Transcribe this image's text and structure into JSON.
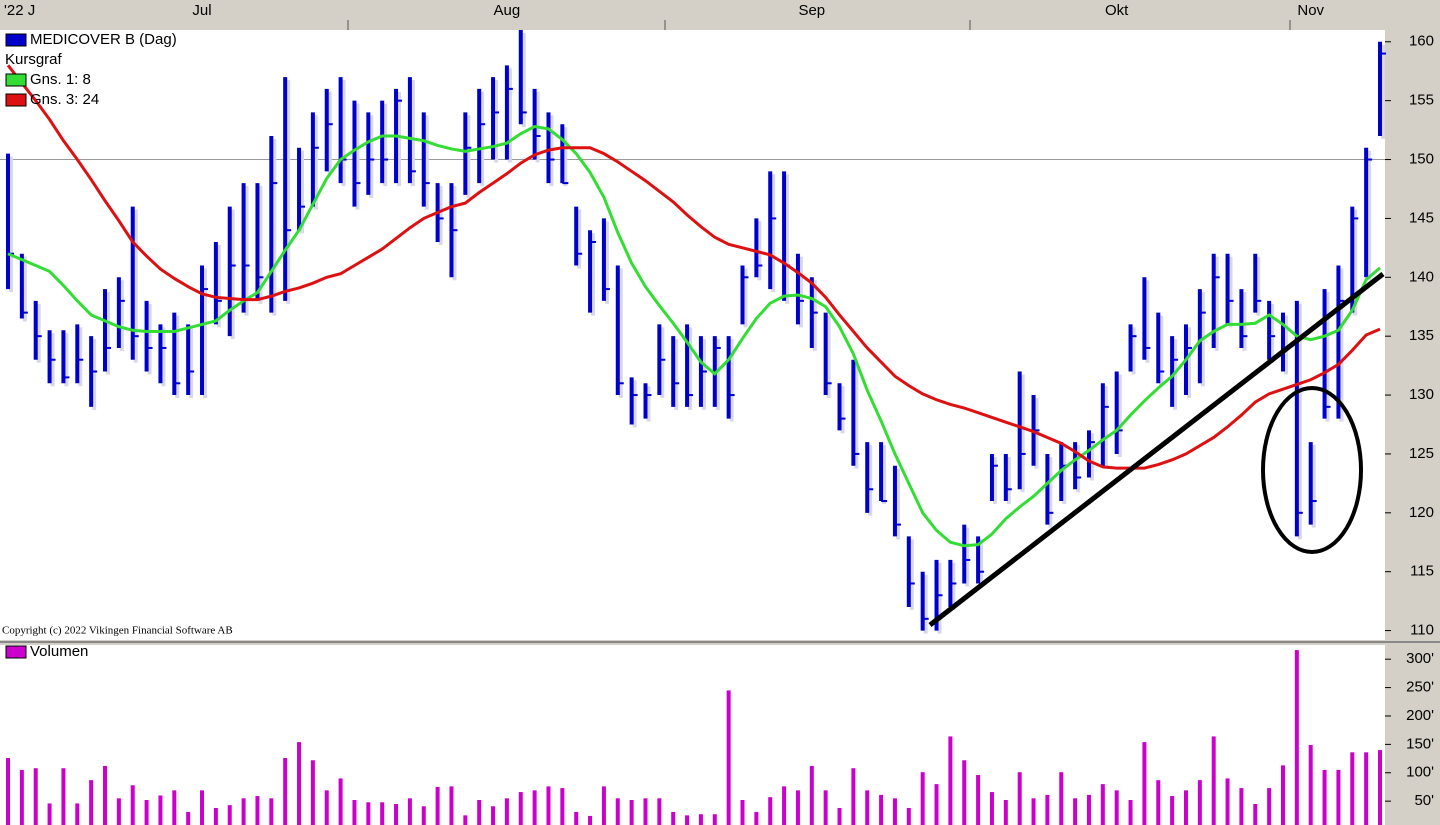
{
  "chart_data": [
    {
      "type": "ohlc",
      "subtitle": "Kursgraf",
      "annotation": "Copyright (c) 2022 Vikingen Financial Software AB",
      "categories": [
        null,
        "'22 J",
        null,
        null,
        null,
        null,
        null,
        null,
        null,
        null,
        null,
        null,
        null,
        null,
        "Jul",
        null,
        null,
        null,
        null,
        null,
        null,
        null,
        null,
        null,
        null,
        null,
        null,
        null,
        null,
        null,
        null,
        null,
        null,
        null,
        null,
        null,
        "Aug",
        null,
        null,
        null,
        null,
        null,
        null,
        null,
        null,
        null,
        null,
        null,
        null,
        null,
        null,
        null,
        null,
        null,
        null,
        null,
        null,
        null,
        "Sep",
        null,
        null,
        null,
        null,
        null,
        null,
        null,
        null,
        null,
        null,
        null,
        null,
        null,
        null,
        null,
        null,
        null,
        null,
        null,
        null,
        null,
        "Okt",
        null,
        null,
        null,
        null,
        null,
        null,
        null,
        null,
        null,
        null,
        null,
        null,
        null,
        "Nov",
        null,
        null,
        null,
        null,
        null
      ],
      "series": [
        {
          "name": "MEDICOVER B (Dag)",
          "color": "#0000cc",
          "high": [
            150.5,
            142,
            138,
            135.5,
            135.5,
            136,
            135,
            139,
            140,
            146,
            138,
            136,
            137,
            136,
            141,
            143,
            146,
            148,
            148,
            152,
            157,
            151,
            154,
            156,
            157,
            155,
            154,
            155,
            156,
            157,
            154,
            148,
            148,
            154,
            156,
            157,
            158,
            161,
            156,
            154,
            153,
            146,
            144,
            145,
            141,
            131.5,
            131,
            136,
            135,
            136,
            135,
            135,
            135,
            141,
            145,
            149,
            149,
            142,
            140,
            137,
            131,
            133,
            126,
            126,
            124,
            118,
            115,
            116,
            116,
            119,
            118,
            125,
            125,
            132,
            130,
            125,
            126,
            126,
            127,
            131,
            132,
            136,
            140,
            137,
            135,
            136,
            139,
            142,
            142,
            139,
            142,
            138,
            137,
            138,
            126,
            139,
            141,
            146,
            151,
            160
          ],
          "low": [
            139,
            136.5,
            133,
            131,
            131,
            131,
            129,
            132,
            134,
            133,
            132,
            131,
            130,
            130,
            130,
            136,
            135,
            137,
            138,
            137,
            138,
            144,
            146,
            149,
            148,
            146,
            147,
            148,
            148,
            148,
            146,
            143,
            140,
            147,
            148,
            150,
            150,
            153,
            150,
            148,
            148,
            141,
            137,
            138,
            130,
            127.5,
            128,
            130,
            129,
            129,
            129,
            129,
            128,
            136,
            140,
            139,
            138,
            136,
            134,
            130,
            127,
            124,
            120,
            121,
            118,
            112,
            110,
            110,
            112,
            114,
            114,
            121,
            121,
            122,
            124,
            119,
            121,
            122,
            123,
            124,
            125,
            132,
            133,
            131,
            129,
            130,
            131,
            134,
            136,
            134,
            137,
            133,
            132,
            118,
            119,
            128,
            128,
            137,
            140,
            152
          ],
          "close": [
            142,
            137,
            135,
            133,
            131.5,
            133,
            132,
            134,
            138,
            135,
            134,
            134,
            131,
            132,
            139,
            138,
            141,
            141,
            140,
            148,
            144,
            146,
            151,
            153,
            150,
            148,
            150,
            150,
            155,
            149,
            148,
            145,
            144,
            151,
            153,
            154,
            156,
            154,
            152,
            150,
            148,
            142,
            143,
            139,
            131,
            130,
            130,
            133,
            131,
            130,
            132,
            134,
            130,
            140,
            141,
            145,
            141,
            138,
            137,
            131,
            128,
            125,
            122,
            121,
            119,
            114,
            111,
            113,
            114,
            116,
            115,
            124,
            122,
            125,
            127,
            120,
            124,
            123,
            126,
            129,
            127,
            135,
            134,
            132,
            133,
            134,
            137,
            140,
            138,
            135,
            138,
            135,
            134,
            120,
            121,
            129,
            138,
            145,
            150,
            159
          ]
        },
        {
          "name": "Gns. 1: 8",
          "type": "line",
          "color": "#33dd33",
          "values": [
            142,
            141.5,
            141,
            140.5,
            139.3,
            138,
            136.8,
            136.3,
            135.8,
            135.5,
            135.4,
            135.4,
            135.4,
            135.7,
            136,
            136.3,
            137.2,
            138,
            138.7,
            140.5,
            142.3,
            144,
            146.2,
            148.4,
            150,
            150.8,
            151.5,
            152,
            152,
            151.8,
            151.6,
            151.2,
            150.9,
            150.7,
            150.9,
            151.1,
            151.4,
            152.2,
            152.8,
            152.6,
            151.7,
            150.5,
            148.9,
            146.8,
            143.8,
            141.2,
            139.2,
            137.6,
            136.1,
            134.5,
            132.8,
            131.8,
            133,
            134.8,
            136.5,
            137.8,
            138.4,
            138.5,
            138.2,
            137.5,
            135.8,
            133.5,
            130.4,
            127.8,
            125,
            122.5,
            120,
            118.5,
            117.5,
            117.2,
            117.3,
            118.2,
            119.5,
            120.5,
            121.4,
            122.5,
            123.6,
            124.5,
            125.3,
            126.2,
            127,
            128.3,
            129.5,
            130.6,
            131.6,
            133,
            134.6,
            135.4,
            136,
            136,
            136.1,
            136.8,
            136,
            135,
            134.7,
            135,
            135.5,
            137.2,
            139.8,
            140.8
          ]
        },
        {
          "name": "Gns. 3: 24",
          "type": "line",
          "color": "#dd1111",
          "values": [
            158,
            156.5,
            155,
            153.4,
            151.6,
            150,
            148.3,
            146.5,
            144.8,
            143,
            141.8,
            140.7,
            139.9,
            139.2,
            138.6,
            138.3,
            138.2,
            138.1,
            138.1,
            138.4,
            138.8,
            139.1,
            139.5,
            140,
            140.3,
            141,
            141.7,
            142.4,
            143.3,
            144.2,
            145,
            145.5,
            146,
            146.3,
            147.2,
            148,
            148.8,
            149.7,
            150.4,
            150.8,
            151,
            151,
            151,
            150.5,
            149.8,
            149,
            148.2,
            147.3,
            146.4,
            145.3,
            144.3,
            143.4,
            142.8,
            142.5,
            142.2,
            141.9,
            141.2,
            140.4,
            139.5,
            138.3,
            136.8,
            135.4,
            134,
            132.8,
            131.6,
            130.8,
            130.1,
            129.6,
            129.2,
            128.9,
            128.5,
            128.1,
            127.7,
            127.3,
            126.9,
            126.4,
            125.9,
            125.2,
            124.4,
            123.9,
            123.8,
            123.8,
            123.8,
            124.1,
            124.5,
            125,
            125.7,
            126.4,
            127.3,
            128.3,
            129.4,
            130.1,
            130.5,
            130.9,
            131.3,
            131.9,
            132.6,
            133.8,
            135.1,
            135.6
          ]
        }
      ],
      "ylim": [
        109.2,
        161
      ],
      "yticks": [
        110,
        115,
        120,
        125,
        130,
        135,
        140,
        145,
        150,
        155,
        160
      ],
      "hline": 150
    },
    {
      "type": "bar",
      "series": [
        {
          "name": "Volumen",
          "color": "#cc00cc",
          "values": [
            126,
            105,
            108,
            46,
            108,
            46,
            87,
            112,
            55,
            78,
            52,
            60,
            69,
            31,
            69,
            38,
            43,
            55,
            59,
            55,
            126,
            154,
            122,
            69,
            90,
            52,
            48,
            48,
            45,
            55,
            41,
            75,
            76,
            25,
            52,
            41,
            55,
            66,
            69,
            76,
            73,
            31,
            24,
            76,
            55,
            52,
            55,
            55,
            31,
            25,
            27,
            27,
            245,
            52,
            31,
            57,
            76,
            69,
            112,
            69,
            38,
            108,
            69,
            61,
            55,
            38,
            101,
            80,
            164,
            122,
            96,
            66,
            52,
            101,
            55,
            61,
            101,
            55,
            61,
            80,
            69,
            52,
            154,
            87,
            59,
            69,
            87,
            164,
            90,
            73,
            45,
            73,
            113,
            316,
            149,
            105,
            105,
            136,
            136,
            140
          ]
        }
      ],
      "ylim": [
        8,
        325
      ],
      "yticks": [
        {
          "value": 50,
          "label": "50'"
        },
        {
          "value": 100,
          "label": "100'"
        },
        {
          "value": 150,
          "label": "150'"
        },
        {
          "value": 200,
          "label": "200'"
        },
        {
          "value": 250,
          "label": "250'"
        },
        {
          "value": 300,
          "label": "300'"
        }
      ]
    }
  ]
}
